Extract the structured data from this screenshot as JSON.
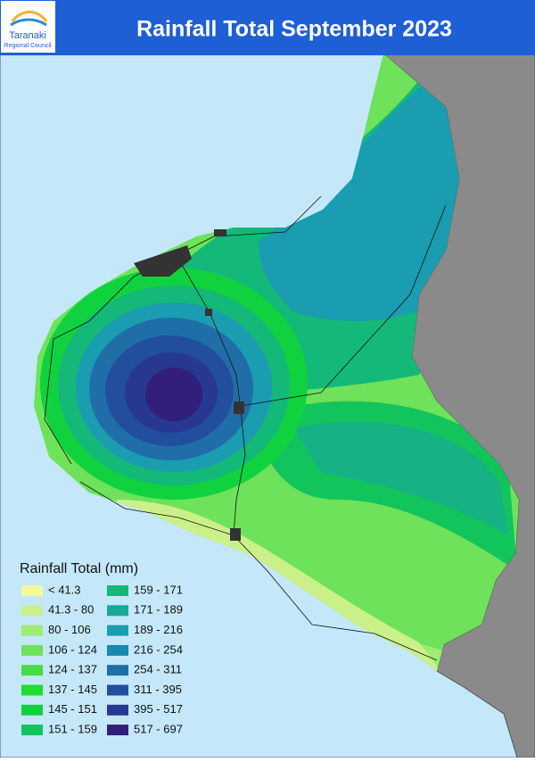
{
  "header": {
    "title": "Rainfall Total September 2023",
    "logo_name": "Taranaki",
    "logo_subtitle": "Regional Council"
  },
  "legend": {
    "title": "Rainfall Total (mm)",
    "items": [
      {
        "label": "< 41.3",
        "color": "#f4f99c"
      },
      {
        "label": "41.3 - 80",
        "color": "#cbf08a"
      },
      {
        "label": "80 - 106",
        "color": "#9ded72"
      },
      {
        "label": "106 - 124",
        "color": "#6de25a"
      },
      {
        "label": "124 - 137",
        "color": "#45dc44"
      },
      {
        "label": "137 - 145",
        "color": "#1ede2a"
      },
      {
        "label": "145 - 151",
        "color": "#10d23e"
      },
      {
        "label": "151 - 159",
        "color": "#12c45c"
      },
      {
        "label": "159 - 171",
        "color": "#14b878"
      },
      {
        "label": "171 - 189",
        "color": "#18aa96"
      },
      {
        "label": "189 - 216",
        "color": "#1a9db0"
      },
      {
        "label": "216 - 254",
        "color": "#1a88b0"
      },
      {
        "label": "254 - 311",
        "color": "#206ea8"
      },
      {
        "label": "311 - 395",
        "color": "#214f9e"
      },
      {
        "label": "395 - 517",
        "color": "#283890"
      },
      {
        "label": "517 - 697",
        "color": "#311f7a"
      }
    ]
  }
}
